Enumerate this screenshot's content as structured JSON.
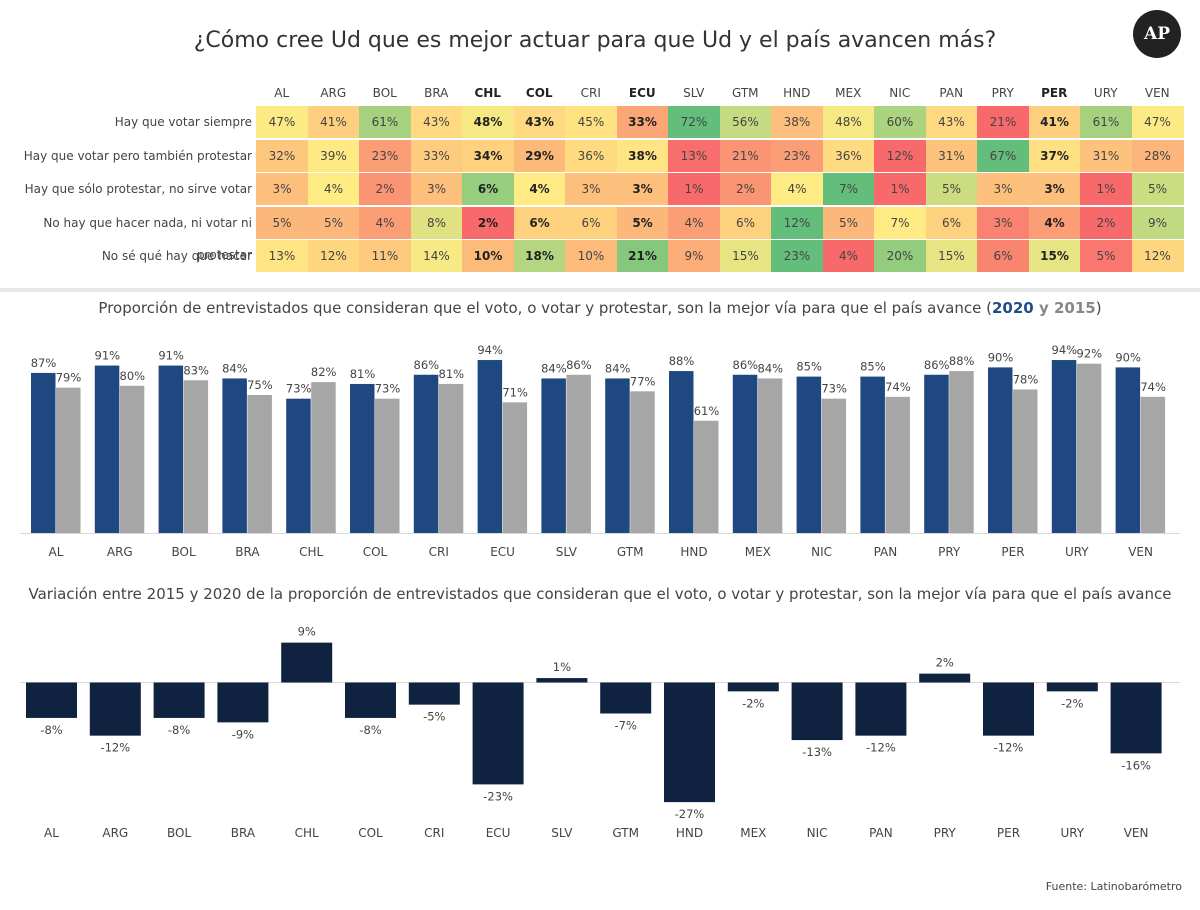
{
  "title": "¿Cómo cree Ud que es mejor actuar para que Ud y el país avancen más?",
  "logo": "AP",
  "countries": [
    "AL",
    "ARG",
    "BOL",
    "BRA",
    "CHL",
    "COL",
    "CRI",
    "ECU",
    "SLV",
    "GTM",
    "HND",
    "MEX",
    "NIC",
    "PAN",
    "PRY",
    "PER",
    "URY",
    "VEN"
  ],
  "bold_countries": [
    "CHL",
    "COL",
    "ECU",
    "PER"
  ],
  "colors": {
    "year_2020": "#1f4780",
    "year_2015": "#a6a6a6",
    "variation": "#0f2240"
  },
  "chart_data": [
    {
      "type": "heatmap",
      "title": "¿Cómo cree Ud que es mejor actuar para que Ud y el país avancen más?",
      "columns": [
        "AL",
        "ARG",
        "BOL",
        "BRA",
        "CHL",
        "COL",
        "CRI",
        "ECU",
        "SLV",
        "GTM",
        "HND",
        "MEX",
        "NIC",
        "PAN",
        "PRY",
        "PER",
        "URY",
        "VEN"
      ],
      "rows": [
        "Hay que votar siempre",
        "Hay que votar pero también protestar",
        "Hay que sólo protestar, no sirve votar",
        "No hay que hacer nada, ni votar ni protestar",
        "No sé qué hay que hacer"
      ],
      "values": [
        [
          47,
          41,
          61,
          43,
          48,
          43,
          45,
          33,
          72,
          56,
          38,
          48,
          60,
          43,
          21,
          41,
          61,
          47
        ],
        [
          32,
          39,
          23,
          33,
          34,
          29,
          36,
          38,
          13,
          21,
          23,
          36,
          12,
          31,
          67,
          37,
          31,
          28
        ],
        [
          3,
          4,
          2,
          3,
          6,
          4,
          3,
          3,
          1,
          2,
          4,
          7,
          1,
          5,
          3,
          3,
          1,
          5
        ],
        [
          5,
          5,
          4,
          8,
          2,
          6,
          6,
          5,
          4,
          6,
          12,
          5,
          7,
          6,
          3,
          4,
          2,
          9
        ],
        [
          13,
          12,
          11,
          14,
          10,
          18,
          10,
          21,
          9,
          15,
          23,
          4,
          20,
          15,
          6,
          15,
          5,
          12
        ]
      ],
      "value_suffix": "%",
      "color_scale": [
        "#f8696b",
        "#ffeb84",
        "#63be7b"
      ]
    },
    {
      "type": "bar",
      "title_parts": [
        "Proporción de entrevistados que consideran que el voto, o votar y protestar, son la mejor vía para que el país avance (",
        "2020",
        " y ",
        "2015",
        ")"
      ],
      "categories": [
        "AL",
        "ARG",
        "BOL",
        "BRA",
        "CHL",
        "COL",
        "CRI",
        "ECU",
        "SLV",
        "GTM",
        "HND",
        "MEX",
        "NIC",
        "PAN",
        "PRY",
        "PER",
        "URY",
        "VEN"
      ],
      "series": [
        {
          "name": "2020",
          "values": [
            87,
            91,
            91,
            84,
            73,
            81,
            86,
            94,
            84,
            84,
            88,
            86,
            85,
            85,
            86,
            90,
            94,
            90
          ]
        },
        {
          "name": "2015",
          "values": [
            79,
            80,
            83,
            75,
            82,
            73,
            81,
            71,
            86,
            77,
            61,
            84,
            73,
            74,
            88,
            78,
            92,
            74
          ]
        }
      ],
      "value_suffix": "%",
      "ylim": [
        0,
        100
      ]
    },
    {
      "type": "bar",
      "title": "Variación entre 2015 y 2020 de la proporción de entrevistados que consideran que el voto, o votar y protestar, son la mejor vía para que el país avance",
      "categories": [
        "AL",
        "ARG",
        "BOL",
        "BRA",
        "CHL",
        "COL",
        "CRI",
        "ECU",
        "SLV",
        "GTM",
        "HND",
        "MEX",
        "NIC",
        "PAN",
        "PRY",
        "PER",
        "URY",
        "VEN"
      ],
      "values": [
        -8,
        -12,
        -8,
        -9,
        9,
        -8,
        -5,
        -23,
        1,
        -7,
        -27,
        -2,
        -13,
        -12,
        2,
        -12,
        -2,
        -16
      ],
      "value_suffix": "%",
      "ylim": [
        -30,
        10
      ]
    }
  ],
  "source": "Fuente: Latinobarómetro"
}
